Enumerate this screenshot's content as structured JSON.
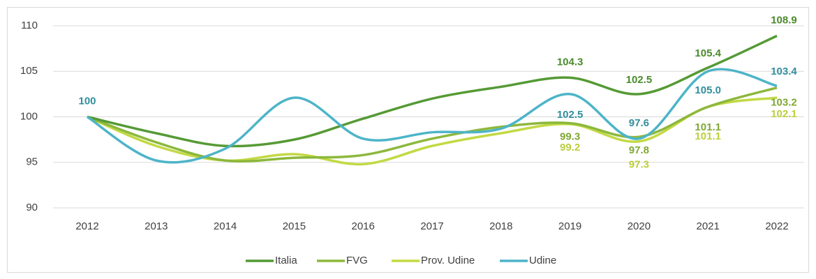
{
  "chart_data": {
    "type": "line",
    "categories": [
      "2012",
      "2013",
      "2014",
      "2015",
      "2016",
      "2017",
      "2018",
      "2019",
      "2020",
      "2021",
      "2022"
    ],
    "ylim": [
      90,
      110
    ],
    "yticks": [
      90,
      95,
      100,
      105,
      110
    ],
    "grid": true,
    "legend": "bottom",
    "series": [
      {
        "name": "Italia",
        "color": "#559a35",
        "label_color": "#4a8a2c",
        "values": [
          100,
          98.2,
          96.8,
          97.5,
          99.8,
          102.0,
          103.3,
          104.3,
          102.5,
          105.4,
          108.9
        ],
        "value_labels": [
          null,
          null,
          null,
          null,
          null,
          null,
          null,
          "104.3",
          "102.5",
          "105.4",
          "108.9"
        ]
      },
      {
        "name": "FVG",
        "color": "#8cb83c",
        "label_color": "#7fa834",
        "values": [
          100,
          97.2,
          95.2,
          95.5,
          95.8,
          97.6,
          98.9,
          99.3,
          97.8,
          101.1,
          103.2
        ],
        "value_labels": [
          null,
          null,
          null,
          null,
          null,
          null,
          null,
          "99.3",
          "97.8",
          "101.1",
          "103.2"
        ]
      },
      {
        "name": "Prov. Udine",
        "color": "#c3d944",
        "label_color": "#bccf3c",
        "values": [
          100,
          96.8,
          95.2,
          95.9,
          94.8,
          96.8,
          98.2,
          99.2,
          97.3,
          101.1,
          102.1
        ],
        "value_labels": [
          null,
          null,
          null,
          null,
          null,
          null,
          null,
          "99.2",
          "97.3",
          "101.1",
          "102.1"
        ]
      },
      {
        "name": "Udine",
        "color": "#4db4c8",
        "label_color": "#318e9c",
        "values": [
          100,
          95.2,
          96.5,
          102.1,
          97.6,
          98.3,
          98.7,
          102.5,
          97.6,
          105.0,
          103.4
        ],
        "value_labels": [
          "100",
          null,
          null,
          null,
          null,
          null,
          null,
          "102.5",
          "97.6",
          "105.0",
          "103.4"
        ]
      }
    ]
  }
}
